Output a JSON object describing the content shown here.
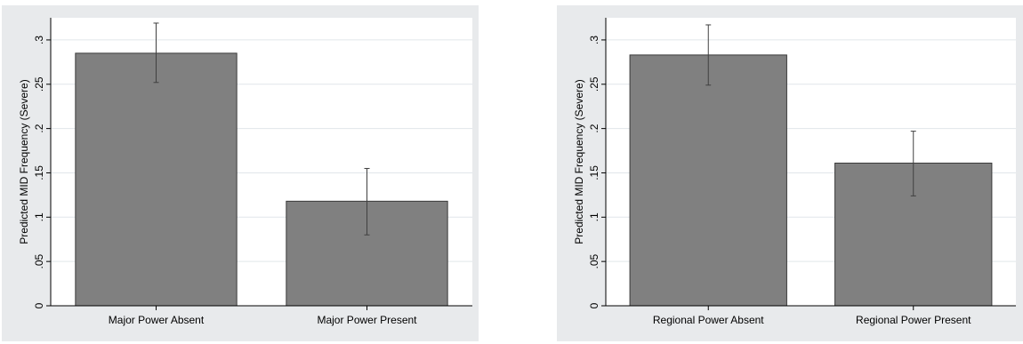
{
  "chart_data": [
    {
      "type": "bar",
      "categories": [
        "Major Power Absent",
        "Major Power Present"
      ],
      "values": [
        0.285,
        0.118
      ],
      "error_low": [
        0.252,
        0.08
      ],
      "error_high": [
        0.319,
        0.155
      ],
      "title": "",
      "xlabel": "",
      "ylabel": "Predicted MID Frequency (Severe)",
      "ylim": [
        0,
        0.325
      ],
      "yticks": [
        0,
        0.05,
        0.1,
        0.15,
        0.2,
        0.25,
        0.3
      ],
      "ytick_labels": [
        "0",
        ".05",
        ".1",
        ".15",
        ".2",
        ".25",
        ".3"
      ],
      "grid": true,
      "bar_color": "#808080",
      "panel_color": "#e8eaec"
    },
    {
      "type": "bar",
      "categories": [
        "Regional Power Absent",
        "Regional Power Present"
      ],
      "values": [
        0.283,
        0.161
      ],
      "error_low": [
        0.249,
        0.124
      ],
      "error_high": [
        0.317,
        0.197
      ],
      "title": "",
      "xlabel": "",
      "ylabel": "Predicted MID Frequency (Severe)",
      "ylim": [
        0,
        0.325
      ],
      "yticks": [
        0,
        0.05,
        0.1,
        0.15,
        0.2,
        0.25,
        0.3
      ],
      "ytick_labels": [
        "0",
        ".05",
        ".1",
        ".15",
        ".2",
        ".25",
        ".3"
      ],
      "grid": true,
      "bar_color": "#808080",
      "panel_color": "#e8eaec"
    }
  ]
}
